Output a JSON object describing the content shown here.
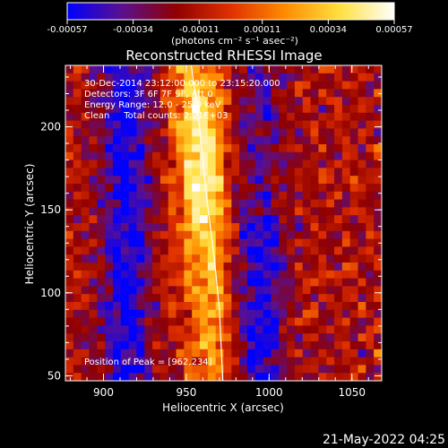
{
  "chart_data": {
    "type": "heatmap",
    "title": "Reconstructed RHESSI Image",
    "xlabel": "Heliocentric X (arcsec)",
    "ylabel": "Heliocentric Y (arcsec)",
    "xlim": [
      877,
      1068
    ],
    "ylim": [
      47,
      237
    ],
    "x_ticks": [
      900,
      950,
      1000,
      1050
    ],
    "y_ticks": [
      50,
      100,
      150,
      200
    ],
    "colorbar": {
      "ticks": [
        "-0.00057",
        "-0.00034",
        "-0.00011",
        "0.00011",
        "0.00034",
        "0.00057"
      ],
      "range": [
        -0.00057,
        0.00057
      ],
      "units_label": "(photons cm⁻² s⁻¹ asec⁻²)",
      "colors": [
        "#0000ff",
        "#5a1090",
        "#900000",
        "#e03000",
        "#ff8c00",
        "#ffe040",
        "#ffffff"
      ]
    },
    "annotations": [
      "30-Dec-2014 23:12:00.000 to 23:15:20.000",
      "Detectors: 3F 6F 7F 9F, Att 0",
      "Energy Range: 12.0 - 25.0 keV",
      "Clean     Total counts: 2.21E+03"
    ],
    "peak_text": "Position of Peak = [962,234]",
    "limb_arc": [
      [
        953,
        237
      ],
      [
        958,
        200
      ],
      [
        962,
        160
      ],
      [
        967,
        120
      ],
      [
        970,
        90
      ],
      [
        972,
        47
      ]
    ],
    "grid": false
  },
  "timestamp": "21-May-2022 04:25"
}
